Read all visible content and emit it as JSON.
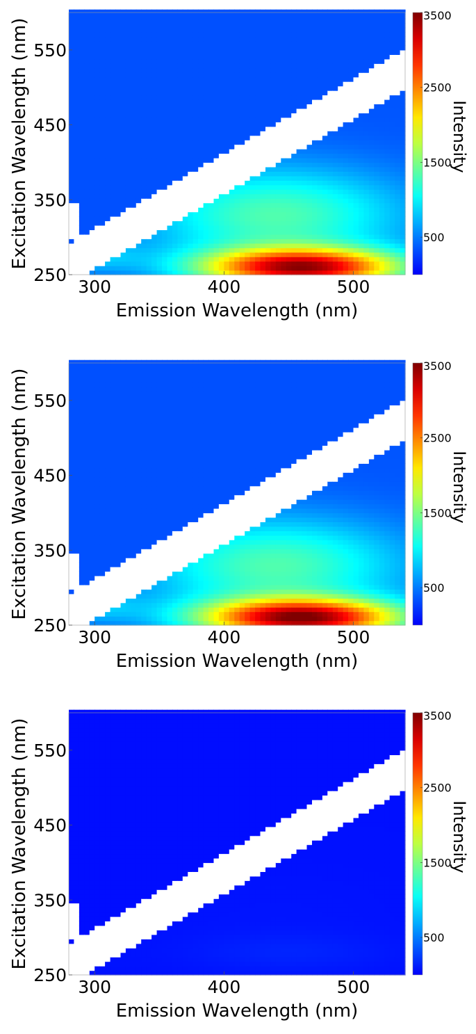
{
  "chart_data": [
    {
      "type": "heatmap",
      "xlabel": "Emission Wavelength (nm)",
      "ylabel": "Excitation Wavelength (nm)",
      "xlim": [
        280,
        540
      ],
      "ylim": [
        250,
        600
      ],
      "xticks": [
        300,
        400,
        500
      ],
      "yticks": [
        250,
        350,
        450,
        550
      ],
      "colorbar": {
        "label": "Intensity",
        "range": [
          0,
          3500
        ],
        "ticks": [
          500,
          1500,
          2500,
          3500
        ]
      },
      "masked_band": "white diagonal band (scatter region, no data)",
      "features": [
        {
          "name": "peak",
          "x_center": 460,
          "y_center": 260,
          "max_intensity": 3200
        },
        {
          "name": "shoulder",
          "x_center": 440,
          "y_center": 330,
          "max_intensity": 1500
        }
      ]
    },
    {
      "type": "heatmap",
      "xlabel": "Emission Wavelength (nm)",
      "ylabel": "Excitation Wavelength (nm)",
      "xlim": [
        280,
        540
      ],
      "ylim": [
        250,
        600
      ],
      "xticks": [
        300,
        400,
        500
      ],
      "yticks": [
        250,
        350,
        450,
        550
      ],
      "colorbar": {
        "label": "Intensity",
        "range": [
          0,
          3500
        ],
        "ticks": [
          500,
          1500,
          2500,
          3500
        ]
      },
      "masked_band": "white diagonal band (scatter region, no data)",
      "features": [
        {
          "name": "peak",
          "x_center": 460,
          "y_center": 260,
          "max_intensity": 3300
        },
        {
          "name": "shoulder",
          "x_center": 440,
          "y_center": 330,
          "max_intensity": 1500
        }
      ]
    },
    {
      "type": "heatmap",
      "xlabel": "Emission Wavelength (nm)",
      "ylabel": "Excitation Wavelength (nm)",
      "xlim": [
        280,
        540
      ],
      "ylim": [
        250,
        600
      ],
      "xticks": [
        300,
        400,
        500
      ],
      "yticks": [
        250,
        350,
        450,
        550
      ],
      "colorbar": {
        "label": "Intensity",
        "range": [
          0,
          3500
        ],
        "ticks": [
          500,
          1500,
          2500,
          3500
        ]
      },
      "masked_band": "white diagonal band (scatter region, no data)",
      "features": [
        {
          "name": "peak",
          "x_center": 450,
          "y_center": 280,
          "max_intensity": 150
        },
        {
          "name": "shoulder",
          "x_center": 440,
          "y_center": 330,
          "max_intensity": 100
        }
      ]
    }
  ]
}
